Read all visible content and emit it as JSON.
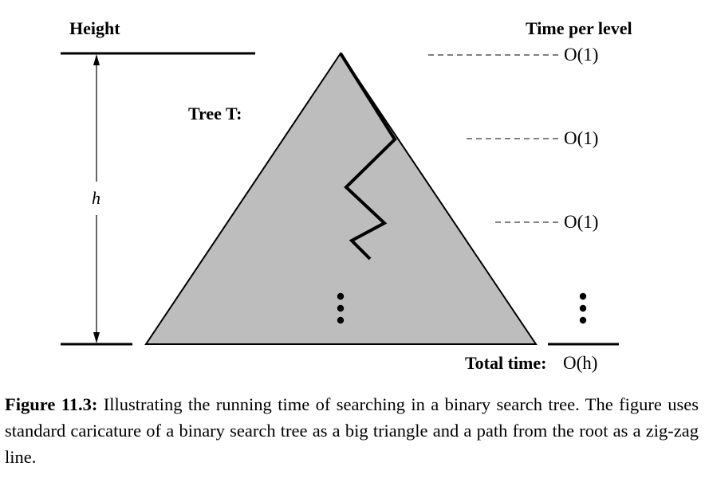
{
  "labels": {
    "height": "Height",
    "time_per_level": "Time per level",
    "h": "h",
    "tree": "Tree T:",
    "level_costs": [
      "O(1)",
      "O(1)",
      "O(1)"
    ],
    "total_time_label": "Total time:",
    "total_time_value": "O(h)"
  },
  "caption": {
    "figure_label": "Figure 11.3:",
    "text": " Illustrating the running time of searching in a binary search tree. The figure uses standard caricature of a binary search tree as a big triangle and a path from the root as a zig-zag line."
  },
  "colors": {
    "tree_fill": "#bdbdbd",
    "ink": "#000000"
  }
}
